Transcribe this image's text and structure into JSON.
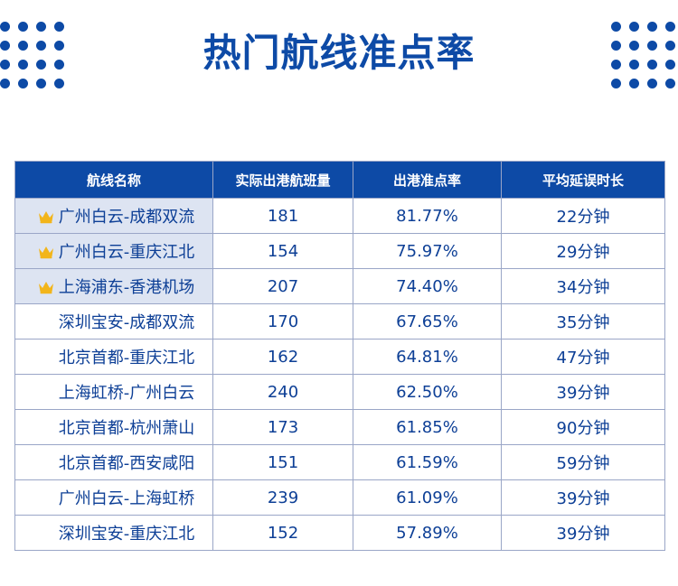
{
  "title": "热门航线准点率",
  "table": {
    "headers": [
      "航线名称",
      "实际出港航班量",
      "出港准点率",
      "平均延误时长"
    ],
    "rows": [
      {
        "route": "广州白云-成都双流",
        "flights": "181",
        "on_time_rate": "81.77%",
        "avg_delay": "22分钟",
        "icon": "crown-icon"
      },
      {
        "route": "广州白云-重庆江北",
        "flights": "154",
        "on_time_rate": "75.97%",
        "avg_delay": "29分钟",
        "icon": "crown-icon"
      },
      {
        "route": "上海浦东-香港机场",
        "flights": "207",
        "on_time_rate": "74.40%",
        "avg_delay": "34分钟",
        "icon": "crown-icon"
      },
      {
        "route": "深圳宝安-成都双流",
        "flights": "170",
        "on_time_rate": "67.65%",
        "avg_delay": "35分钟"
      },
      {
        "route": "北京首都-重庆江北",
        "flights": "162",
        "on_time_rate": "64.81%",
        "avg_delay": "47分钟"
      },
      {
        "route": "上海虹桥-广州白云",
        "flights": "240",
        "on_time_rate": "62.50%",
        "avg_delay": "39分钟"
      },
      {
        "route": "北京首都-杭州萧山",
        "flights": "173",
        "on_time_rate": "61.85%",
        "avg_delay": "90分钟"
      },
      {
        "route": "北京首都-西安咸阳",
        "flights": "151",
        "on_time_rate": "61.59%",
        "avg_delay": "59分钟"
      },
      {
        "route": "广州白云-上海虹桥",
        "flights": "239",
        "on_time_rate": "61.09%",
        "avg_delay": "39分钟"
      },
      {
        "route": "深圳宝安-重庆江北",
        "flights": "152",
        "on_time_rate": "57.89%",
        "avg_delay": "39分钟"
      }
    ]
  },
  "colors": {
    "accent": "#0d4aa6",
    "highlight_row_bg": "#dde4f2",
    "text": "#0d3f96",
    "crown": "#f2b51b"
  }
}
